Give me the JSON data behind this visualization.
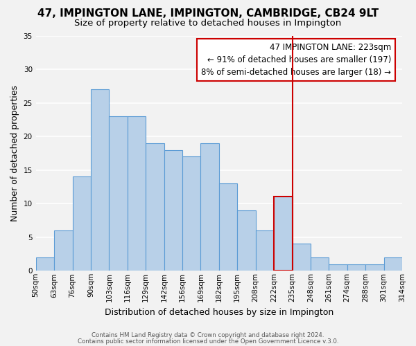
{
  "title": "47, IMPINGTON LANE, IMPINGTON, CAMBRIDGE, CB24 9LT",
  "subtitle": "Size of property relative to detached houses in Impington",
  "xlabel": "Distribution of detached houses by size in Impington",
  "ylabel": "Number of detached properties",
  "footer1": "Contains HM Land Registry data © Crown copyright and database right 2024.",
  "footer2": "Contains public sector information licensed under the Open Government Licence v.3.0.",
  "bin_edges": [
    "50sqm",
    "63sqm",
    "76sqm",
    "90sqm",
    "103sqm",
    "116sqm",
    "129sqm",
    "142sqm",
    "156sqm",
    "169sqm",
    "182sqm",
    "195sqm",
    "208sqm",
    "222sqm",
    "235sqm",
    "248sqm",
    "261sqm",
    "274sqm",
    "288sqm",
    "301sqm",
    "314sqm"
  ],
  "bar_heights": [
    2,
    6,
    14,
    27,
    23,
    23,
    19,
    18,
    17,
    19,
    13,
    9,
    6,
    11,
    4,
    2,
    1,
    1,
    1,
    2
  ],
  "bar_color": "#b8d0e8",
  "bar_edge_color": "#5b9bd5",
  "highlight_bar_index": 13,
  "highlight_bar_edge_color": "#cc0000",
  "vline_color": "#cc0000",
  "ylim": [
    0,
    35
  ],
  "yticks": [
    0,
    5,
    10,
    15,
    20,
    25,
    30,
    35
  ],
  "annotation_title": "47 IMPINGTON LANE: 223sqm",
  "annotation_line1": "← 91% of detached houses are smaller (197)",
  "annotation_line2": "8% of semi-detached houses are larger (18) →",
  "bg_color": "#f2f2f2",
  "grid_color": "#ffffff",
  "title_fontsize": 11,
  "subtitle_fontsize": 9.5,
  "axis_label_fontsize": 9,
  "tick_fontsize": 7.5,
  "annotation_fontsize": 8.5,
  "footer_fontsize": 6.2
}
